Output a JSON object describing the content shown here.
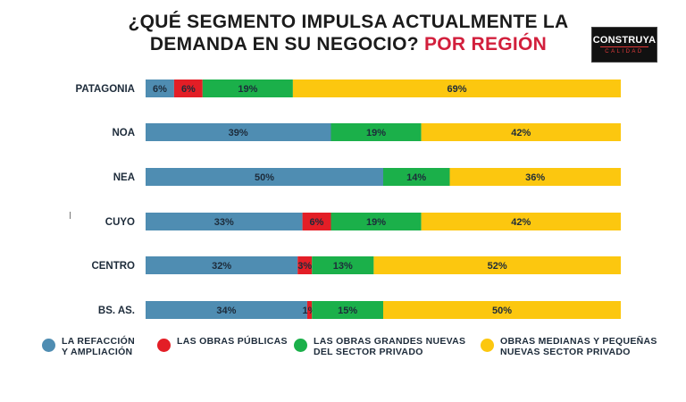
{
  "title": {
    "line1": "¿QUÉ SEGMENTO IMPULSA ACTUALMENTE LA",
    "line2_main": "DEMANDA EN SU NEGOCIO?",
    "line2_accent": "POR REGIÓN"
  },
  "logo": {
    "main": "CONSTRUYA",
    "sub": "CALIDAD"
  },
  "colors": {
    "refaccion": "#4f8db2",
    "publicas": "#e31e26",
    "grandes": "#1bb04a",
    "medianas": "#fcc70f"
  },
  "legend": [
    {
      "key": "refaccion",
      "line1": "LA REFACCIÓN",
      "line2": "Y AMPLIACIÓN"
    },
    {
      "key": "publicas",
      "line1": "LAS OBRAS PÚBLICAS",
      "line2": ""
    },
    {
      "key": "grandes",
      "line1": "LAS OBRAS GRANDES NUEVAS",
      "line2": "DEL SECTOR PRIVADO"
    },
    {
      "key": "medianas",
      "line1": "OBRAS MEDIANAS Y PEQUEÑAS",
      "line2": "NUEVAS SECTOR PRIVADO"
    }
  ],
  "chart_data": {
    "type": "bar",
    "orientation": "horizontal",
    "stacked": true,
    "unit": "%",
    "categories": [
      "PATAGONIA",
      "NOA",
      "NEA",
      "CUYO",
      "CENTRO",
      "BS. AS."
    ],
    "series": [
      {
        "key": "refaccion",
        "name": "LA REFACCIÓN Y AMPLIACIÓN",
        "values": [
          6,
          39,
          50,
          33,
          32,
          34
        ]
      },
      {
        "key": "publicas",
        "name": "LAS OBRAS PÚBLICAS",
        "values": [
          6,
          0,
          0,
          6,
          3,
          1
        ]
      },
      {
        "key": "grandes",
        "name": "LAS OBRAS GRANDES NUEVAS DEL SECTOR PRIVADO",
        "values": [
          19,
          19,
          14,
          19,
          13,
          15
        ]
      },
      {
        "key": "medianas",
        "name": "OBRAS MEDIANAS Y PEQUEÑAS NUEVAS SECTOR PRIVADO",
        "values": [
          69,
          42,
          36,
          42,
          52,
          50
        ]
      }
    ],
    "legend_position": "bottom",
    "grid": false
  }
}
